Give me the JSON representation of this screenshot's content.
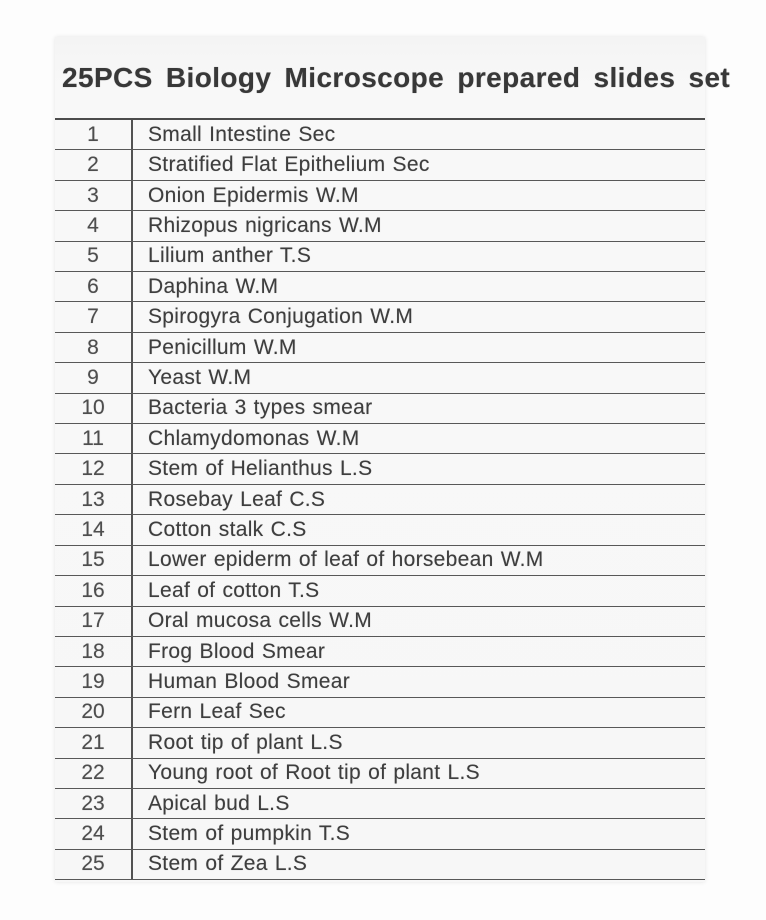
{
  "title": "25PCS Biology Microscope prepared slides set",
  "table": {
    "rows": [
      {
        "num": "1",
        "name": "Small Intestine Sec"
      },
      {
        "num": "2",
        "name": "Stratified Flat Epithelium Sec"
      },
      {
        "num": "3",
        "name": "Onion Epidermis W.M"
      },
      {
        "num": "4",
        "name": "Rhizopus nigricans W.M"
      },
      {
        "num": "5",
        "name": "Lilium anther T.S"
      },
      {
        "num": "6",
        "name": "Daphina W.M"
      },
      {
        "num": "7",
        "name": "Spirogyra Conjugation W.M"
      },
      {
        "num": "8",
        "name": "Penicillum W.M"
      },
      {
        "num": "9",
        "name": "Yeast W.M"
      },
      {
        "num": "10",
        "name": "Bacteria 3 types smear"
      },
      {
        "num": "11",
        "name": "Chlamydomonas W.M"
      },
      {
        "num": "12",
        "name": "Stem of Helianthus L.S"
      },
      {
        "num": "13",
        "name": "Rosebay Leaf C.S"
      },
      {
        "num": "14",
        "name": "Cotton stalk C.S"
      },
      {
        "num": "15",
        "name": "Lower epiderm of leaf of horsebean W.M"
      },
      {
        "num": "16",
        "name": "Leaf of cotton T.S"
      },
      {
        "num": "17",
        "name": "Oral mucosa cells W.M"
      },
      {
        "num": "18",
        "name": "Frog Blood Smear"
      },
      {
        "num": "19",
        "name": "Human Blood Smear"
      },
      {
        "num": "20",
        "name": "Fern Leaf Sec"
      },
      {
        "num": "21",
        "name": "Root tip of plant L.S"
      },
      {
        "num": "22",
        "name": "Young root of Root tip of plant L.S"
      },
      {
        "num": "23",
        "name": "Apical bud L.S"
      },
      {
        "num": "24",
        "name": "Stem of pumpkin T.S"
      },
      {
        "num": "25",
        "name": "Stem of Zea L.S"
      }
    ]
  },
  "colors": {
    "paper_background": "#f7f7f7",
    "line_color": "#525252",
    "text_color": "#3e3e3e"
  }
}
